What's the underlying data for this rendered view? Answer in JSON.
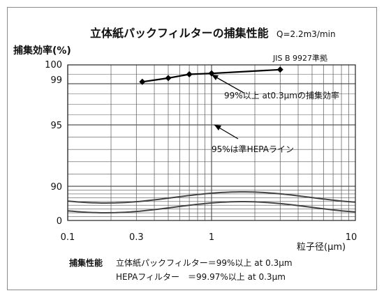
{
  "chart_data": {
    "type": "line",
    "title": "立体紙パックフィルターの捕集性能",
    "subtitle": "Q=2.2m3/min",
    "standard": "JIS B 9927準拠",
    "ylabel": "捕集効率(%)",
    "xlabel": "粒子径(μm)",
    "xscale": "log",
    "xlim": [
      0.1,
      10
    ],
    "ylim": [
      0,
      100
    ],
    "x_ticks": [
      "0.1",
      "0.3",
      "1",
      "10"
    ],
    "y_ticks": [
      "0",
      "90",
      "95",
      "99",
      "100"
    ],
    "grid": true,
    "series": [
      {
        "x": [
          0.33,
          0.5,
          0.7,
          1.0,
          3.0
        ],
        "y": [
          99.1,
          99.3,
          99.5,
          99.55,
          99.75
        ]
      }
    ],
    "annotations": [
      {
        "text": "99%以上 at0.3μmの捕集効率"
      },
      {
        "text": "95%は準HEPAライン"
      }
    ],
    "footer": {
      "label": "捕集性能",
      "line1": "立体紙パックフィルター＝99%以上 at 0.3μm",
      "line2": "HEPAフィルター　＝99.97%以上 at  0.3μm"
    },
    "colors": {
      "line": "#000000",
      "grid": "#555555",
      "wave": "#444444"
    }
  }
}
